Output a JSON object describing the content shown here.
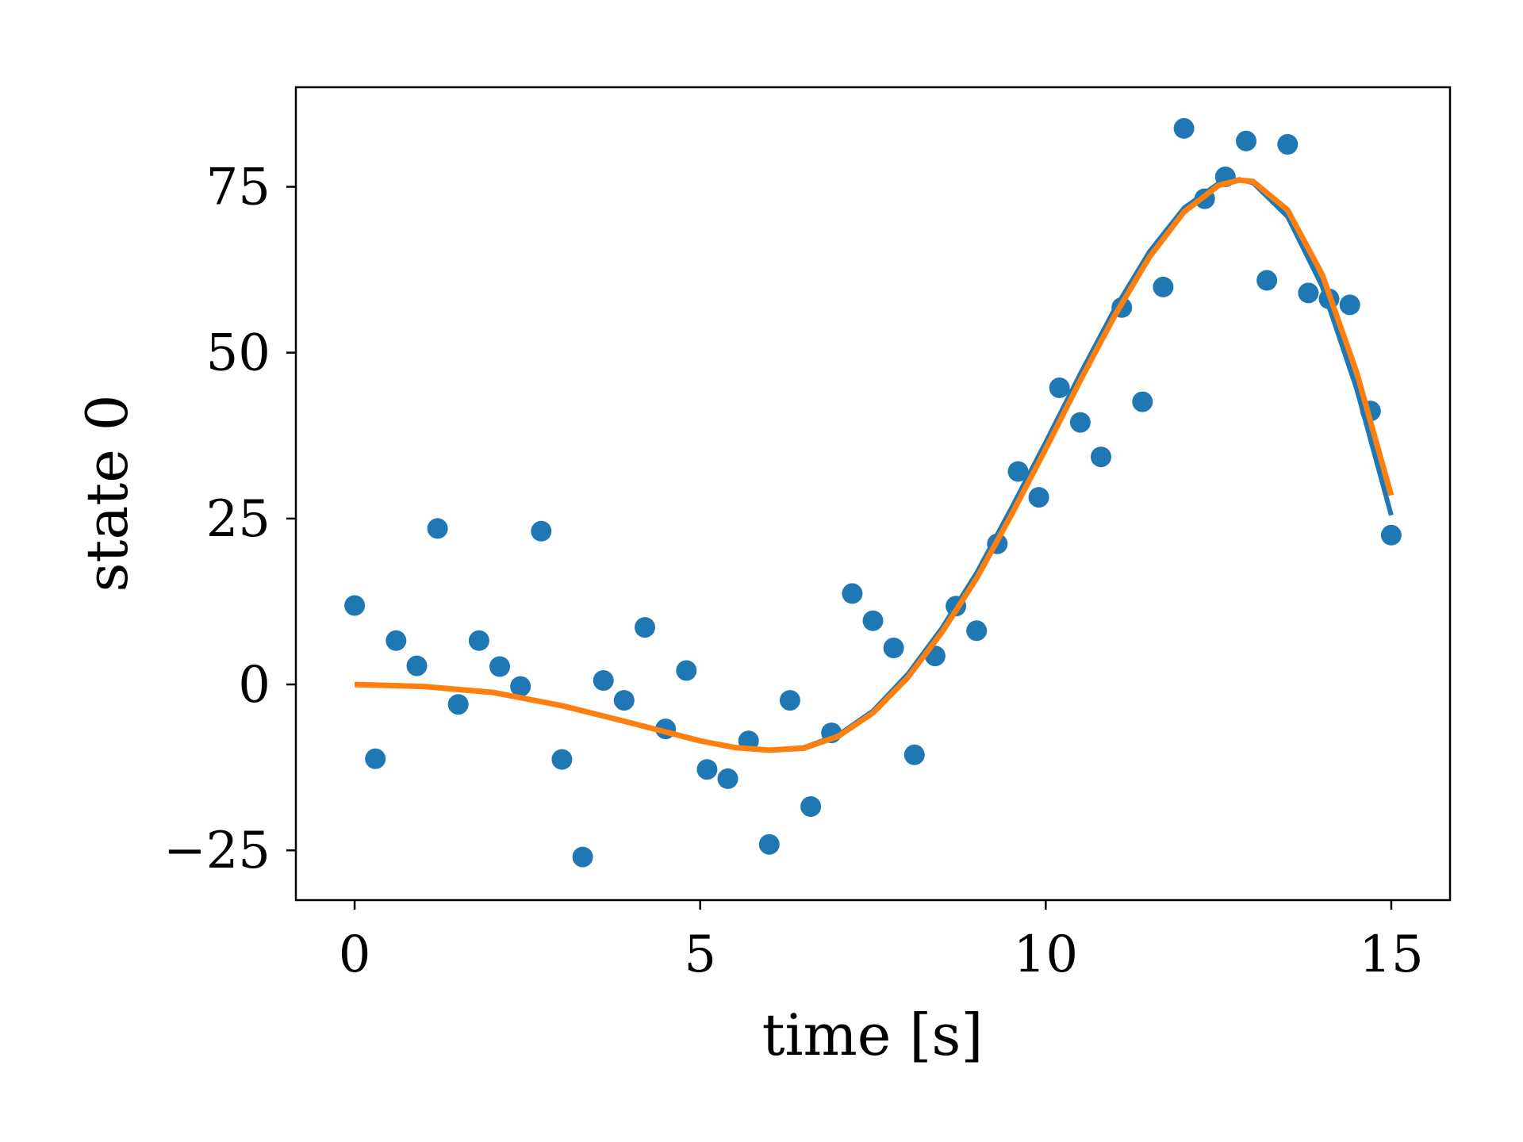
{
  "chart_data": {
    "type": "scatter",
    "xlabel": "time [s]",
    "ylabel": "state 0",
    "xlim": [
      -0.85,
      15.85
    ],
    "ylim": [
      -32.5,
      90
    ],
    "xticks": [
      0,
      5,
      10,
      15
    ],
    "yticks": [
      -25,
      0,
      25,
      50,
      75
    ],
    "grid": false,
    "legend": "none",
    "series": [
      {
        "type": "scatter",
        "color": "#1f77b4",
        "x": [
          0,
          0.3,
          0.6,
          0.9,
          1.2,
          1.5,
          1.8,
          2.1,
          2.4,
          2.7,
          3.0,
          3.3,
          3.6,
          3.9,
          4.2,
          4.5,
          4.8,
          5.1,
          5.4,
          5.7,
          6.0,
          6.3,
          6.6,
          6.9,
          7.2,
          7.5,
          7.8,
          8.1,
          8.4,
          8.7,
          9.0,
          9.3,
          9.6,
          9.9,
          10.2,
          10.5,
          10.8,
          11.1,
          11.4,
          11.7,
          12.0,
          12.3,
          12.6,
          12.9,
          13.2,
          13.5,
          13.8,
          14.1,
          14.4,
          14.7,
          15.0
        ],
        "y": [
          11.9,
          -11.2,
          6.6,
          2.8,
          23.5,
          -3.0,
          6.6,
          2.7,
          -0.3,
          23.1,
          -11.3,
          -26.0,
          0.6,
          -2.4,
          8.6,
          -6.7,
          2.1,
          -12.8,
          -14.2,
          -8.5,
          -24.1,
          -2.4,
          -18.4,
          -7.3,
          13.7,
          9.6,
          5.5,
          -10.6,
          4.3,
          11.8,
          8.1,
          21.2,
          32.1,
          28.2,
          44.7,
          39.5,
          34.3,
          56.8,
          42.6,
          59.9,
          83.8,
          73.2,
          76.5,
          81.9,
          60.9,
          81.4,
          59.0,
          58.1,
          57.2,
          41.2,
          22.5
        ]
      },
      {
        "type": "line",
        "color": "#1f77b4",
        "x": [
          0,
          1,
          2,
          3,
          4,
          5,
          5.5,
          6,
          6.5,
          7,
          7.5,
          8,
          8.5,
          9,
          9.5,
          10,
          10.5,
          11,
          11.5,
          12,
          12.5,
          12.8,
          13,
          13.5,
          14,
          14.5,
          15
        ],
        "y": [
          0,
          -0.3,
          -1.2,
          -3.2,
          -5.8,
          -8.5,
          -9.5,
          -9.9,
          -9.5,
          -7.6,
          -4.0,
          1.5,
          8.5,
          16.8,
          26.5,
          36.5,
          46.8,
          56.6,
          65.2,
          71.8,
          75.5,
          76.1,
          75.6,
          70.5,
          60.0,
          44.5,
          25.5
        ]
      },
      {
        "type": "line",
        "color": "#ff7f0e",
        "x": [
          0,
          1,
          2,
          3,
          4,
          5,
          5.5,
          6,
          6.5,
          7,
          7.5,
          8,
          8.5,
          9,
          9.5,
          10,
          10.5,
          11,
          11.5,
          12,
          12.5,
          12.8,
          13,
          13.5,
          14,
          14.5,
          15
        ],
        "y": [
          0,
          -0.3,
          -1.2,
          -3.2,
          -5.8,
          -8.5,
          -9.5,
          -9.9,
          -9.6,
          -7.8,
          -4.3,
          1.0,
          7.9,
          16.0,
          25.5,
          35.5,
          45.8,
          55.6,
          64.4,
          71.2,
          75.2,
          76.0,
          75.8,
          71.5,
          61.8,
          47.0,
          28.5
        ]
      }
    ]
  }
}
